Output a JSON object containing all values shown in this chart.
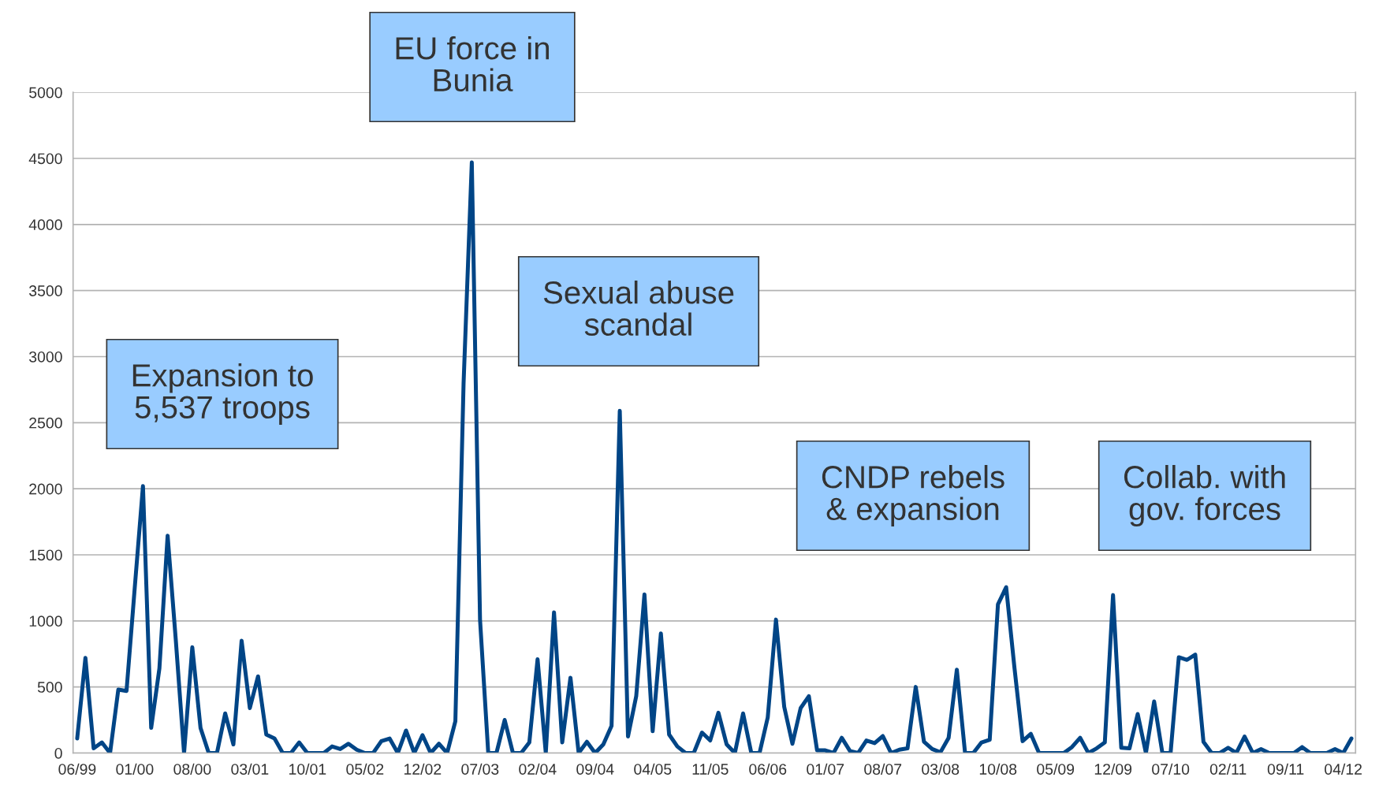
{
  "chart_data": {
    "type": "line",
    "categories": [
      "06/99",
      null,
      null,
      null,
      null,
      null,
      null,
      "01/00",
      null,
      null,
      null,
      null,
      null,
      null,
      "08/00",
      null,
      null,
      null,
      null,
      null,
      null,
      "03/01",
      null,
      null,
      null,
      null,
      null,
      null,
      "10/01",
      null,
      null,
      null,
      null,
      null,
      null,
      "05/02",
      null,
      null,
      null,
      null,
      null,
      null,
      "12/02",
      null,
      null,
      null,
      null,
      null,
      null,
      "07/03",
      null,
      null,
      null,
      null,
      null,
      null,
      "02/04",
      null,
      null,
      null,
      null,
      null,
      null,
      "09/04",
      null,
      null,
      null,
      null,
      null,
      null,
      "04/05",
      null,
      null,
      null,
      null,
      null,
      null,
      "11/05",
      null,
      null,
      null,
      null,
      null,
      null,
      "06/06",
      null,
      null,
      null,
      null,
      null,
      null,
      "01/07",
      null,
      null,
      null,
      null,
      null,
      null,
      "08/07",
      null,
      null,
      null,
      null,
      null,
      null,
      "03/08",
      null,
      null,
      null,
      null,
      null,
      null,
      "10/08",
      null,
      null,
      null,
      null,
      null,
      null,
      "05/09",
      null,
      null,
      null,
      null,
      null,
      null,
      "12/09",
      null,
      null,
      null,
      null,
      null,
      null,
      "07/10",
      null,
      null,
      null,
      null,
      null,
      null,
      "02/11",
      null,
      null,
      null,
      null,
      null,
      null,
      "09/11",
      null,
      null,
      null,
      null,
      null,
      null,
      "04/12",
      null
    ],
    "series": [
      {
        "color": "#004586",
        "values": [
          110,
          720,
          35,
          80,
          0,
          480,
          470,
          1250,
          2020,
          190,
          640,
          1645,
          850,
          0,
          800,
          190,
          0,
          0,
          300,
          65,
          850,
          340,
          580,
          140,
          110,
          0,
          0,
          80,
          0,
          0,
          0,
          50,
          30,
          70,
          25,
          0,
          0,
          90,
          110,
          0,
          170,
          0,
          135,
          0,
          70,
          0,
          240,
          2800,
          4470,
          1010,
          0,
          0,
          250,
          0,
          0,
          80,
          710,
          0,
          1065,
          80,
          570,
          0,
          85,
          0,
          65,
          205,
          2590,
          125,
          430,
          1200,
          165,
          905,
          140,
          50,
          0,
          0,
          155,
          95,
          305,
          65,
          0,
          300,
          0,
          0,
          270,
          1010,
          350,
          70,
          340,
          430,
          20,
          20,
          0,
          115,
          15,
          0,
          95,
          75,
          128,
          0,
          25,
          35,
          500,
          85,
          30,
          5,
          115,
          630,
          0,
          0,
          80,
          100,
          1125,
          1255,
          650,
          90,
          145,
          0,
          0,
          0,
          0,
          45,
          115,
          0,
          35,
          80,
          1195,
          40,
          35,
          295,
          0,
          390,
          0,
          0,
          725,
          705,
          745,
          85,
          0,
          0,
          40,
          0,
          125,
          0,
          30,
          0,
          0,
          0,
          0,
          45,
          0,
          0,
          0,
          30,
          0,
          110
        ]
      }
    ],
    "ylim": [
      0,
      5000
    ],
    "yticks": [
      0,
      500,
      1000,
      1500,
      2000,
      2500,
      3000,
      3500,
      4000,
      4500,
      5000
    ],
    "grid": "y",
    "marker": "none",
    "line_style": "solid",
    "annotations": [
      "Expansion to\n5,537 troops",
      "EU force in\nBunia",
      "Sexual abuse\nscandal",
      "CNDP rebels\n& expansion",
      "Collab. with\ngov. forces"
    ]
  }
}
